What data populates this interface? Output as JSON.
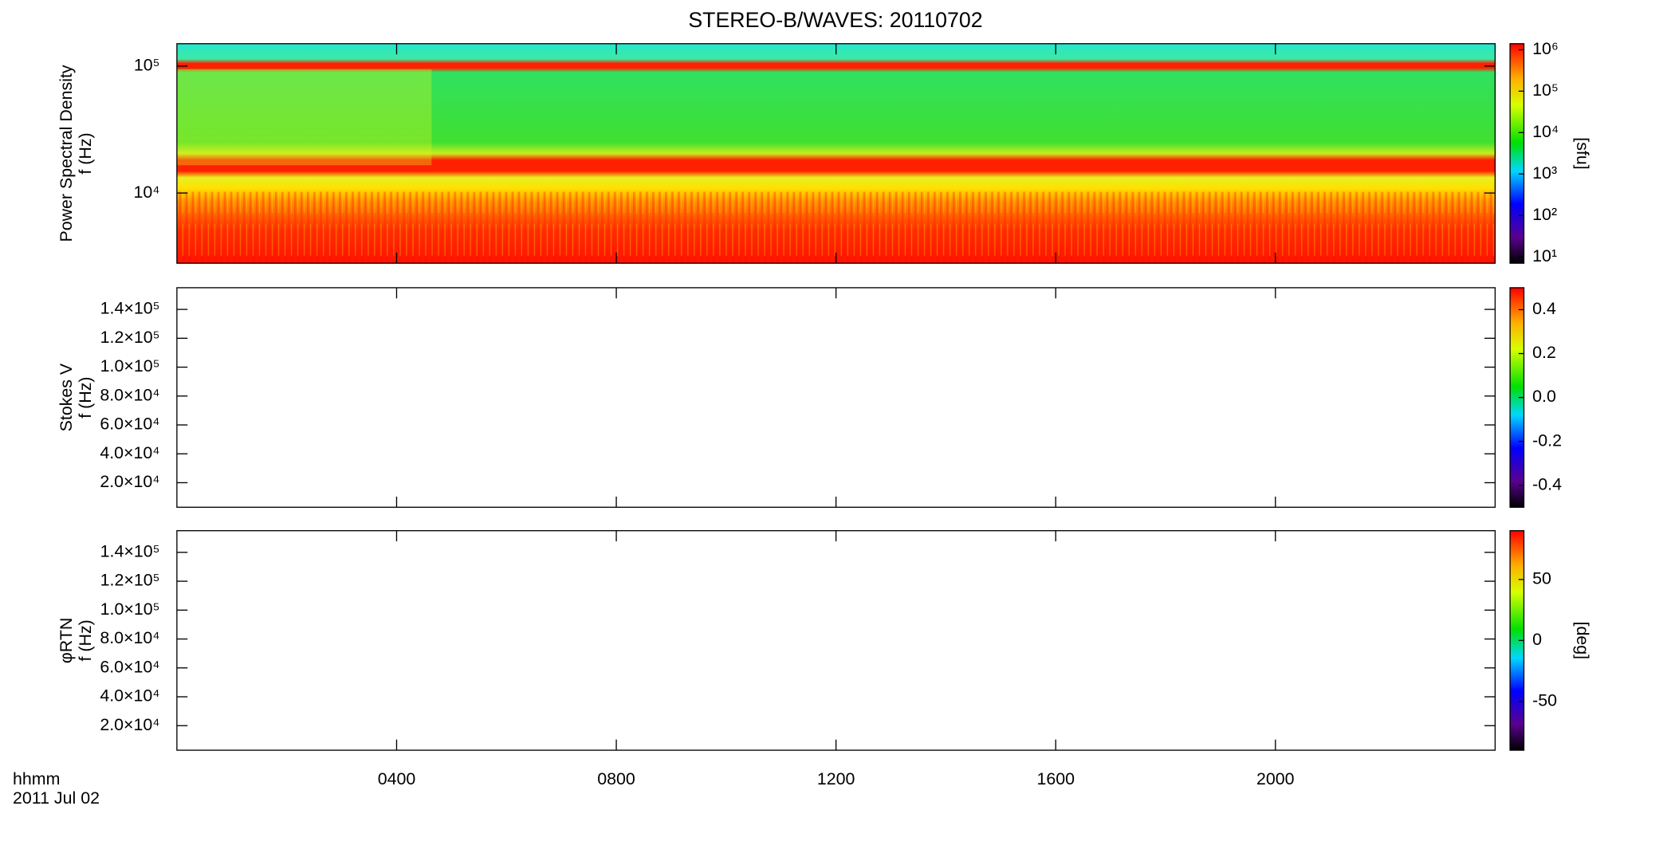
{
  "chart_data": [
    {
      "type": "heatmap",
      "title": "STEREO-B/WAVES: 20110702",
      "ylabel": [
        "Power Spectral Density",
        "f (Hz)"
      ],
      "ylog": true,
      "ylim": [
        2800,
        150000
      ],
      "yticks": [
        {
          "value": 10000,
          "label": "10⁴"
        },
        {
          "value": 100000,
          "label": "10⁵"
        }
      ],
      "xlim": [
        0,
        24
      ],
      "xticks": [
        4,
        8,
        12,
        16,
        20
      ],
      "clog": true,
      "clim": [
        7,
        1400000
      ],
      "cticks": [
        {
          "value": 10,
          "label": "10¹"
        },
        {
          "value": 100,
          "label": "10²"
        },
        {
          "value": 1000,
          "label": "10³"
        },
        {
          "value": 10000,
          "label": "10⁴"
        },
        {
          "value": 100000,
          "label": "10⁵"
        },
        {
          "value": 1000000,
          "label": "10⁶"
        }
      ],
      "clabel": "[sfu]"
    },
    {
      "type": "heatmap",
      "ylabel": [
        "Stokes V",
        "f (Hz)"
      ],
      "ylog": false,
      "ylim": [
        3000,
        155000
      ],
      "yticks": [
        {
          "value": 20000,
          "label": "2.0×10⁴"
        },
        {
          "value": 40000,
          "label": "4.0×10⁴"
        },
        {
          "value": 60000,
          "label": "6.0×10⁴"
        },
        {
          "value": 80000,
          "label": "8.0×10⁴"
        },
        {
          "value": 100000,
          "label": "1.0×10⁵"
        },
        {
          "value": 120000,
          "label": "1.2×10⁵"
        },
        {
          "value": 140000,
          "label": "1.4×10⁵"
        }
      ],
      "xlim": [
        0,
        24
      ],
      "xticks": [
        4,
        8,
        12,
        16,
        20
      ],
      "clog": false,
      "clim": [
        -0.5,
        0.5
      ],
      "cticks": [
        -0.4,
        -0.2,
        {
          "value": 0,
          "label": "0.0"
        },
        0.2,
        0.4
      ]
    },
    {
      "type": "heatmap",
      "ylabel": [
        "φRTN",
        "f (Hz)"
      ],
      "ylog": false,
      "ylim": [
        3000,
        155000
      ],
      "yticks": [
        {
          "value": 20000,
          "label": "2.0×10⁴"
        },
        {
          "value": 40000,
          "label": "4.0×10⁴"
        },
        {
          "value": 60000,
          "label": "6.0×10⁴"
        },
        {
          "value": 80000,
          "label": "8.0×10⁴"
        },
        {
          "value": 100000,
          "label": "1.0×10⁵"
        },
        {
          "value": 120000,
          "label": "1.2×10⁵"
        },
        {
          "value": 140000,
          "label": "1.4×10⁵"
        }
      ],
      "xlim": [
        0,
        24
      ],
      "xticks": [
        {
          "value": 4,
          "label": "0400"
        },
        {
          "value": 8,
          "label": "0800"
        },
        {
          "value": 12,
          "label": "1200"
        },
        {
          "value": 16,
          "label": "1600"
        },
        {
          "value": 20,
          "label": "2000"
        }
      ],
      "xaxis_label": "hhmm",
      "date": "2011 Jul 02",
      "clog": false,
      "clim": [
        -90,
        90
      ],
      "cticks": [
        -50,
        0,
        50
      ],
      "clabel": "[deg]"
    }
  ]
}
